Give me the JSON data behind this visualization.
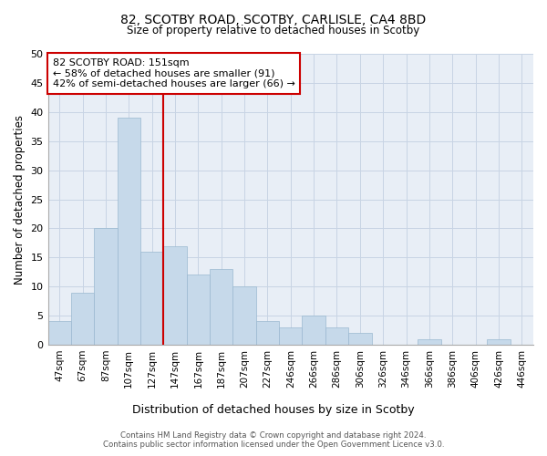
{
  "title_line1": "82, SCOTBY ROAD, SCOTBY, CARLISLE, CA4 8BD",
  "title_line2": "Size of property relative to detached houses in Scotby",
  "xlabel": "Distribution of detached houses by size in Scotby",
  "ylabel": "Number of detached properties",
  "categories": [
    "47sqm",
    "67sqm",
    "87sqm",
    "107sqm",
    "127sqm",
    "147sqm",
    "167sqm",
    "187sqm",
    "207sqm",
    "227sqm",
    "246sqm",
    "266sqm",
    "286sqm",
    "306sqm",
    "326sqm",
    "346sqm",
    "366sqm",
    "386sqm",
    "406sqm",
    "426sqm",
    "446sqm"
  ],
  "values": [
    4,
    9,
    20,
    39,
    16,
    17,
    12,
    13,
    10,
    4,
    3,
    5,
    3,
    2,
    0,
    0,
    1,
    0,
    0,
    1,
    0
  ],
  "bar_color": "#c6d9ea",
  "bar_edgecolor": "#9ab8d0",
  "property_label": "82 SCOTBY ROAD: 151sqm",
  "annotation_line1": "← 58% of detached houses are smaller (91)",
  "annotation_line2": "42% of semi-detached houses are larger (66) →",
  "vline_color": "#cc0000",
  "vline_x": 4.5,
  "annotation_box_edgecolor": "#cc0000",
  "ylim": [
    0,
    50
  ],
  "yticks": [
    0,
    5,
    10,
    15,
    20,
    25,
    30,
    35,
    40,
    45,
    50
  ],
  "grid_color": "#c8d4e4",
  "background_color": "#e8eef6",
  "footer_line1": "Contains HM Land Registry data © Crown copyright and database right 2024.",
  "footer_line2": "Contains public sector information licensed under the Open Government Licence v3.0."
}
